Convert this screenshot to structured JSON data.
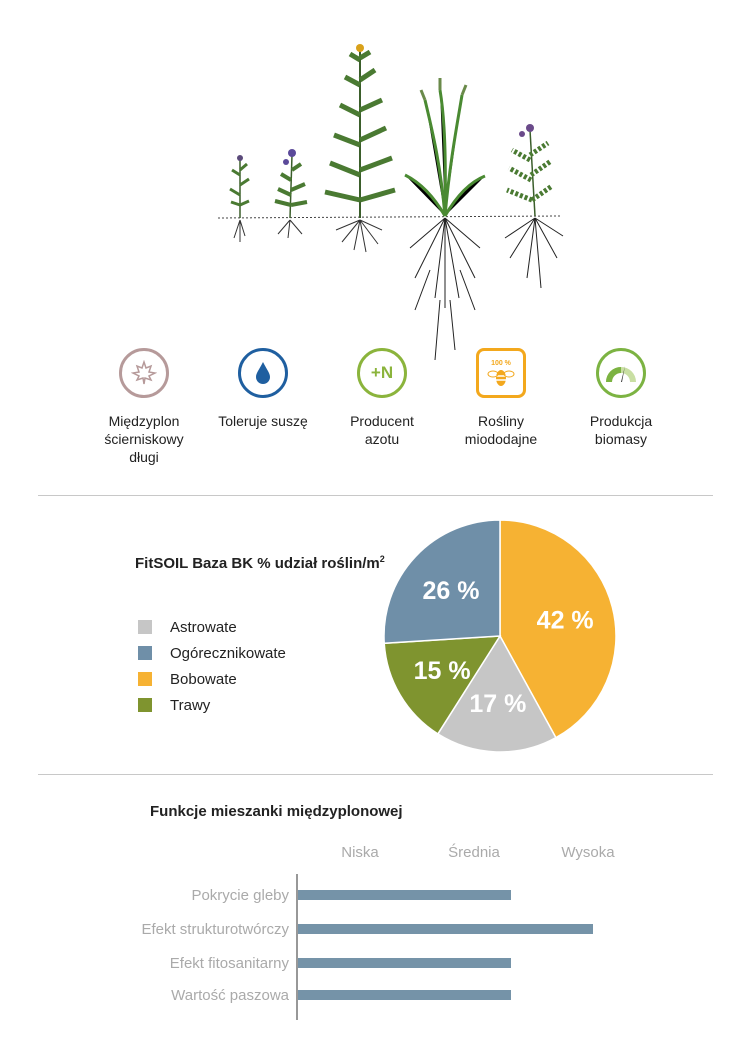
{
  "features": [
    {
      "icon": "maple-leaf-icon",
      "label": "Międzyplon\nścierniskowy\ndługi",
      "color": "#b69a9a"
    },
    {
      "icon": "water-drop-icon",
      "label": "Toleruje suszę",
      "color": "#1f5fa0"
    },
    {
      "icon": "nitrogen-plus-icon",
      "glyph": "+N",
      "label": "Producent\nazotu",
      "color": "#8bb43c"
    },
    {
      "icon": "bee-icon",
      "glyph": "100 %",
      "label": "Rośliny\nmiododajne",
      "color": "#f3a81d"
    },
    {
      "icon": "gauge-icon",
      "label": "Produkcja\nbiomasy",
      "color": "#7cb342"
    }
  ],
  "pie": {
    "title": "FitSOIL Baza BK % udział roślin/m",
    "title_sup": "2"
  },
  "bar": {
    "title": "Funkcje mieszanki międzyplonowej"
  },
  "chart_data": [
    {
      "type": "pie",
      "title": "FitSOIL Baza BK % udział roślin/m²",
      "legend_position": "left",
      "slices": [
        {
          "label": "Astrowate",
          "value": 17,
          "color": "#c6c6c6"
        },
        {
          "label": "Ogórecznikowate",
          "value": 26,
          "color": "#6f8fa8"
        },
        {
          "label": "Bobowate",
          "value": 42,
          "color": "#f6b233"
        },
        {
          "label": "Trawy",
          "value": 15,
          "color": "#7f942f"
        }
      ],
      "slice_order_clockwise_from_top": [
        "Bobowate",
        "Astrowate",
        "Trawy",
        "Ogórecznikowate"
      ],
      "value_suffix": " %"
    },
    {
      "type": "bar",
      "orientation": "horizontal",
      "title": "Funkcje mieszanki międzyplonowej",
      "scale_labels": [
        "Niska",
        "Średnia",
        "Wysoka"
      ],
      "categories": [
        "Pokrycie gleby",
        "Efekt strukturotwórczy",
        "Efekt fitosanitarny",
        "Wartość paszowa"
      ],
      "values": [
        2,
        3,
        2,
        2
      ],
      "xlim": [
        0,
        3
      ],
      "bar_color": "#7593a8"
    }
  ]
}
